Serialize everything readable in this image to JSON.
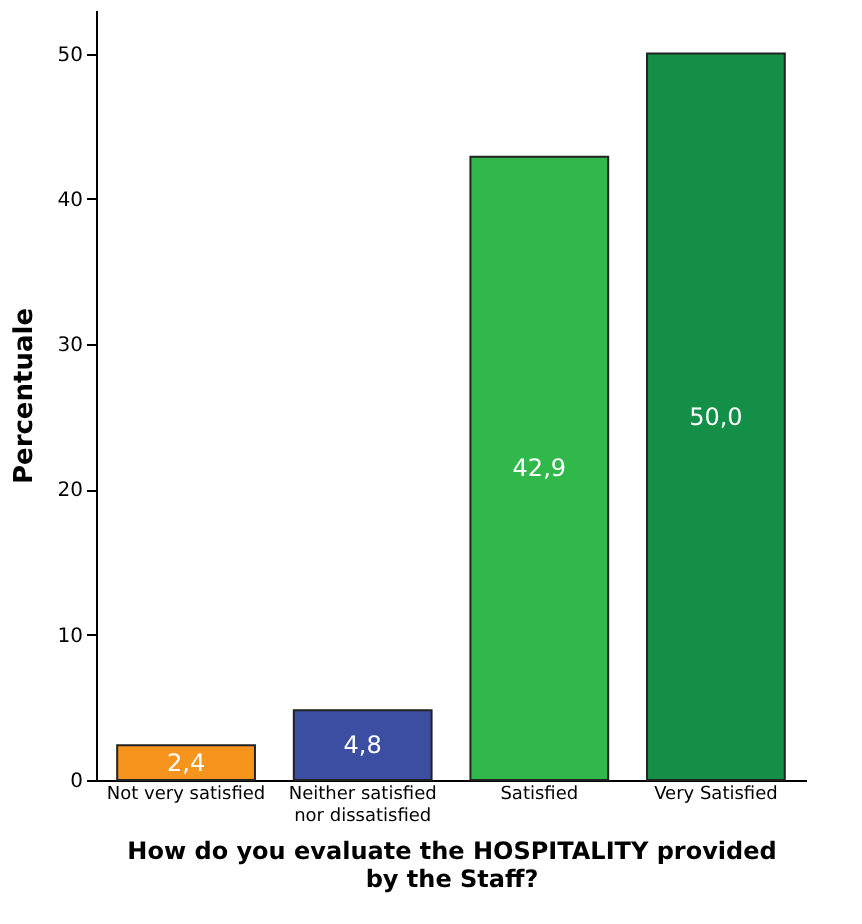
{
  "chart_data": {
    "type": "bar",
    "categories": [
      "Not very satisfied",
      "Neither satisfied\nnor dissatisfied",
      "Satisfied",
      "Very Satisfied"
    ],
    "values": [
      2.4,
      4.8,
      42.9,
      50.0
    ],
    "colors": [
      "#f7941d",
      "#3b4ea2",
      "#31b84a",
      "#138f48"
    ],
    "value_labels": [
      "2,4",
      "4,8",
      "42,9",
      "50,0"
    ],
    "xlabel": "How do you evaluate the HOSPITALITY provided\nby the Staff?",
    "ylabel": "Percentuale",
    "ylim": [
      0,
      53
    ],
    "yticks": [
      0,
      10,
      20,
      30,
      40,
      50
    ],
    "grid": false
  }
}
